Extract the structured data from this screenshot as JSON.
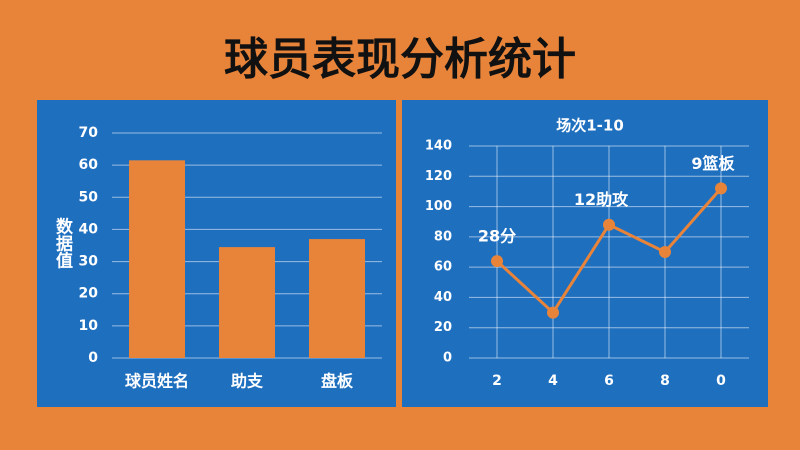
{
  "title": "球员表现分析统计",
  "chart_data": [
    {
      "type": "bar",
      "y_label": "数据值",
      "categories": [
        "球员姓名",
        "助支",
        "盘板"
      ],
      "values": [
        61.5,
        34.5,
        37
      ],
      "color": "#e8843a",
      "ylim": [
        0,
        70
      ],
      "yticks": [
        0,
        10,
        20,
        30,
        40,
        50,
        60,
        70
      ],
      "grid": true
    },
    {
      "type": "line",
      "title": "场次1-10",
      "categories": [
        "2",
        "4",
        "6",
        "8",
        "0"
      ],
      "values": [
        64,
        30,
        88,
        70,
        112
      ],
      "annotations": [
        "28分",
        null,
        "12助攻",
        null,
        "9篮板"
      ],
      "color": "#e8843a",
      "ylim": [
        0,
        140
      ],
      "yticks": [
        0,
        20,
        40,
        60,
        80,
        100,
        120,
        140
      ],
      "grid": true
    }
  ]
}
